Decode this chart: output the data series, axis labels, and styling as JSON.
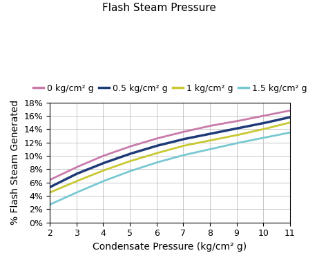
{
  "title": "Flash Steam Pressure",
  "xlabel": "Condensate Pressure (kg/cm² g)",
  "ylabel": "% Flash Steam Generated",
  "x_min": 2,
  "x_max": 11,
  "y_min": 0,
  "y_max": 18,
  "y_ticks": [
    0,
    2,
    4,
    6,
    8,
    10,
    12,
    14,
    16,
    18
  ],
  "x_ticks": [
    2,
    3,
    4,
    5,
    6,
    7,
    8,
    9,
    10,
    11
  ],
  "series": [
    {
      "label": "0 kg/cm² g",
      "color": "#c87aaa",
      "linewidth": 2.0,
      "y_vals": [
        6.4,
        8.3,
        10.0,
        11.4,
        12.6,
        13.6,
        14.5,
        15.2,
        16.0,
        16.8
      ]
    },
    {
      "label": "0.5 kg/cm² g",
      "color": "#1e3a78",
      "linewidth": 2.5,
      "y_vals": [
        5.3,
        7.3,
        8.9,
        10.3,
        11.5,
        12.5,
        13.3,
        14.1,
        14.9,
        15.8
      ]
    },
    {
      "label": "1 kg/cm² g",
      "color": "#c8c832",
      "linewidth": 2.0,
      "y_vals": [
        4.5,
        6.2,
        7.8,
        9.2,
        10.4,
        11.5,
        12.3,
        13.1,
        14.0,
        15.0
      ]
    },
    {
      "label": "1.5 kg/cm² g",
      "color": "#78c8d2",
      "linewidth": 2.0,
      "y_vals": [
        2.7,
        4.5,
        6.2,
        7.7,
        9.0,
        10.1,
        11.0,
        11.9,
        12.7,
        13.5
      ]
    }
  ],
  "background_color": "#ffffff",
  "grid_color": "#b0b0b0",
  "title_fontsize": 11,
  "label_fontsize": 10,
  "tick_fontsize": 9,
  "legend_fontsize": 9
}
